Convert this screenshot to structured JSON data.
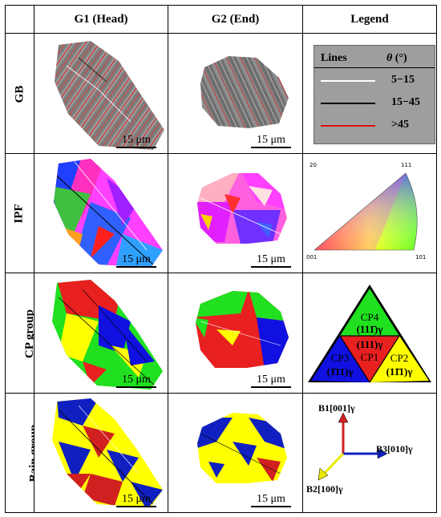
{
  "header": {
    "col1": "G1 (Head)",
    "col2": "G2 (End)",
    "col3": "Legend"
  },
  "rows": {
    "gb": "GB",
    "ipf": "IPF",
    "cp": "CP group",
    "bain": "Bain group"
  },
  "scale_label": "15 μm",
  "gb_legend": {
    "col_lines": "Lines",
    "col_theta_symbol": "θ",
    "col_theta_unit": " (°)",
    "items": [
      {
        "range": "5−15",
        "color": "#ffffff"
      },
      {
        "range": "15−45",
        "color": "#000000"
      },
      {
        "range": ">45",
        "color": "#e01010"
      }
    ]
  },
  "ipf_legend": {
    "corner_top_left": "20",
    "corner_top_right": "111",
    "corner_bottom_left": "001",
    "corner_bottom_right": "101"
  },
  "cp_legend": {
    "cp4": "CP4",
    "cp4_plane": "(111̄)γ",
    "center_plane": "(111)γ",
    "cp1": "CP1",
    "cp3": "CP3",
    "cp3_plane": "(1̄11)γ",
    "cp2": "CP2",
    "cp2_plane": "(11̄1)γ",
    "colors": {
      "cp1": "#e82020",
      "cp2": "#ffff00",
      "cp3": "#1010e0",
      "cp4": "#20e020"
    }
  },
  "bain_legend": {
    "b1": "B1[001]γ",
    "b2": "B2[100]γ",
    "b3": "B3[010]γ",
    "colors": {
      "b1": "#d02020",
      "b2": "#e8e800",
      "b3": "#1020c0"
    }
  }
}
